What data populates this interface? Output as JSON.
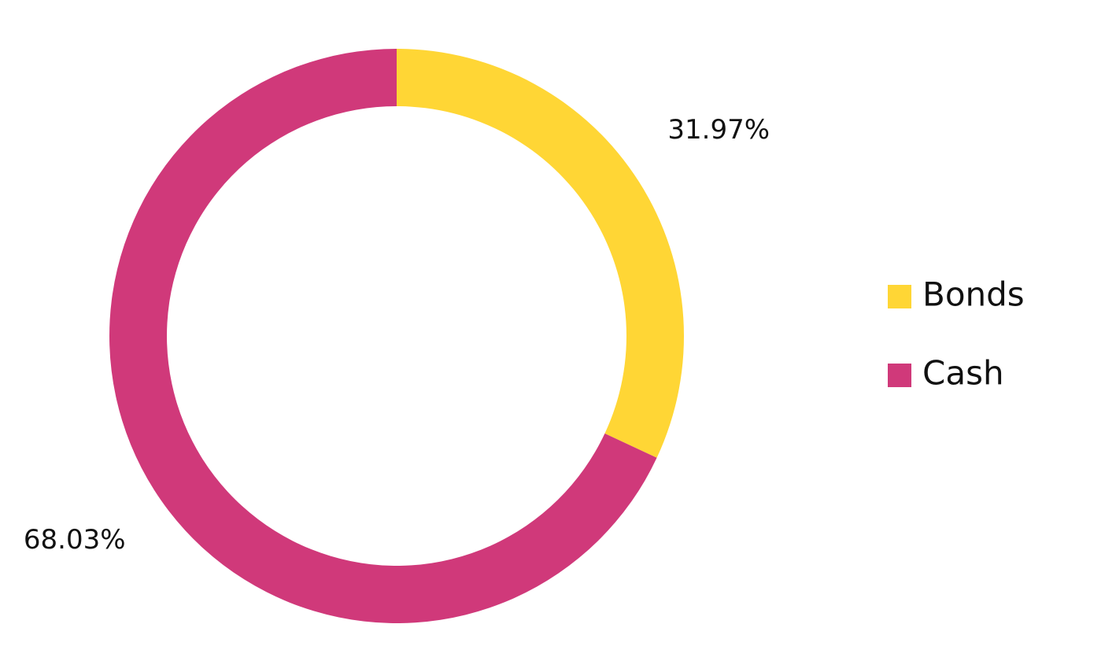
{
  "chart_data": {
    "type": "donut",
    "categories": [
      "Bonds",
      "Cash"
    ],
    "values": [
      31.97,
      68.03
    ],
    "value_labels": [
      "31.97%",
      "68.03%"
    ],
    "colors": [
      "#ffd635",
      "#d0397a"
    ],
    "legend": "right"
  }
}
